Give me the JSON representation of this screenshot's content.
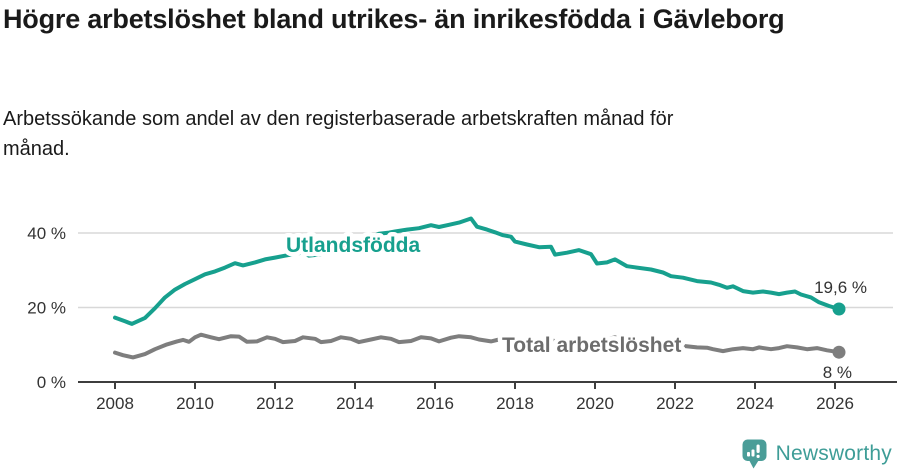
{
  "header": {
    "title": "Högre arbetslöshet bland utrikes- än inrikesfödda i Gävleborg",
    "subtitle": "Arbetssökande som andel av den registerbaserade arbetskraften månad för månad."
  },
  "footer": {
    "brand": "Newsworthy",
    "logo_icon": "newsworthy-pin-barchart-icon",
    "brand_color": "#3e9d97",
    "logo_color": "#4a9d98"
  },
  "chart_data": {
    "type": "line",
    "title": "Högre arbetslöshet bland utrikes- än inrikesfödda i Gävleborg",
    "subtitle": "Arbetssökande som andel av den registerbaserade arbetskraften månad för månad.",
    "xlabel": "",
    "ylabel": "",
    "unit": "%",
    "grid": "horizontal",
    "legend": "inline-labels",
    "xlim": [
      2007.1,
      2027.5
    ],
    "ylim": [
      0,
      47
    ],
    "x_ticks": [
      {
        "value": 2008,
        "label": "2008"
      },
      {
        "value": 2010,
        "label": "2010"
      },
      {
        "value": 2012,
        "label": "2012"
      },
      {
        "value": 2014,
        "label": "2014"
      },
      {
        "value": 2016,
        "label": "2016"
      },
      {
        "value": 2018,
        "label": "2018"
      },
      {
        "value": 2020,
        "label": "2020"
      },
      {
        "value": 2022,
        "label": "2022"
      },
      {
        "value": 2024,
        "label": "2024"
      },
      {
        "value": 2026,
        "label": "2026"
      }
    ],
    "y_ticks": [
      {
        "value": 0,
        "label": "0 %"
      },
      {
        "value": 20,
        "label": "20 %"
      },
      {
        "value": 40,
        "label": "40 %"
      }
    ],
    "series": [
      {
        "name": "Utlandsfödda",
        "color": "#17a08e",
        "label_color": "#17a08e",
        "end_label": "19,6 %",
        "end_value": 19.6,
        "points": [
          [
            2008.0,
            17.3
          ],
          [
            2008.25,
            16.3
          ],
          [
            2008.42,
            15.6
          ],
          [
            2008.75,
            17.2
          ],
          [
            2009.0,
            19.8
          ],
          [
            2009.25,
            22.7
          ],
          [
            2009.5,
            24.8
          ],
          [
            2009.75,
            26.3
          ],
          [
            2010.0,
            27.6
          ],
          [
            2010.25,
            28.9
          ],
          [
            2010.5,
            29.7
          ],
          [
            2010.75,
            30.7
          ],
          [
            2011.0,
            31.9
          ],
          [
            2011.2,
            31.3
          ],
          [
            2011.5,
            32.1
          ],
          [
            2011.75,
            32.9
          ],
          [
            2012.0,
            33.4
          ],
          [
            2012.25,
            33.9
          ],
          [
            2012.5,
            34.4
          ],
          [
            2012.7,
            34.8
          ],
          [
            2012.85,
            33.9
          ],
          [
            2013.0,
            34.1
          ],
          [
            2013.3,
            34.6
          ],
          [
            2013.6,
            35.5
          ],
          [
            2014.0,
            37.0
          ],
          [
            2014.3,
            38.3
          ],
          [
            2014.6,
            39.8
          ],
          [
            2014.85,
            40.1
          ],
          [
            2015.0,
            40.4
          ],
          [
            2015.3,
            40.9
          ],
          [
            2015.6,
            41.3
          ],
          [
            2015.9,
            42.1
          ],
          [
            2016.1,
            41.6
          ],
          [
            2016.35,
            42.2
          ],
          [
            2016.6,
            42.8
          ],
          [
            2016.9,
            43.9
          ],
          [
            2017.05,
            41.7
          ],
          [
            2017.3,
            40.9
          ],
          [
            2017.5,
            40.2
          ],
          [
            2017.7,
            39.4
          ],
          [
            2017.9,
            39.0
          ],
          [
            2018.0,
            37.7
          ],
          [
            2018.3,
            36.9
          ],
          [
            2018.6,
            36.2
          ],
          [
            2018.9,
            36.3
          ],
          [
            2019.0,
            34.2
          ],
          [
            2019.3,
            34.7
          ],
          [
            2019.6,
            35.4
          ],
          [
            2019.9,
            34.3
          ],
          [
            2020.05,
            31.8
          ],
          [
            2020.3,
            32.1
          ],
          [
            2020.5,
            32.9
          ],
          [
            2020.8,
            31.1
          ],
          [
            2021.0,
            30.8
          ],
          [
            2021.4,
            30.2
          ],
          [
            2021.7,
            29.4
          ],
          [
            2021.9,
            28.4
          ],
          [
            2022.2,
            28.0
          ],
          [
            2022.55,
            27.1
          ],
          [
            2022.9,
            26.7
          ],
          [
            2023.1,
            26.1
          ],
          [
            2023.3,
            25.3
          ],
          [
            2023.45,
            25.7
          ],
          [
            2023.7,
            24.4
          ],
          [
            2023.95,
            24.0
          ],
          [
            2024.2,
            24.3
          ],
          [
            2024.4,
            24.0
          ],
          [
            2024.6,
            23.6
          ],
          [
            2024.8,
            24.0
          ],
          [
            2025.0,
            24.3
          ],
          [
            2025.15,
            23.5
          ],
          [
            2025.4,
            22.7
          ],
          [
            2025.6,
            21.4
          ],
          [
            2025.85,
            20.4
          ],
          [
            2026.1,
            19.6
          ]
        ]
      },
      {
        "name": "Total arbetslöshet",
        "color": "#7e7e7e",
        "label_color": "#6d6d6d",
        "end_label": "8 %",
        "end_value": 8,
        "points": [
          [
            2008.0,
            7.9
          ],
          [
            2008.2,
            7.2
          ],
          [
            2008.45,
            6.6
          ],
          [
            2008.75,
            7.5
          ],
          [
            2009.0,
            8.8
          ],
          [
            2009.3,
            10.1
          ],
          [
            2009.55,
            10.9
          ],
          [
            2009.7,
            11.3
          ],
          [
            2009.85,
            10.8
          ],
          [
            2010.0,
            12.0
          ],
          [
            2010.15,
            12.7
          ],
          [
            2010.4,
            12.0
          ],
          [
            2010.6,
            11.5
          ],
          [
            2010.9,
            12.3
          ],
          [
            2011.1,
            12.2
          ],
          [
            2011.3,
            10.8
          ],
          [
            2011.55,
            10.9
          ],
          [
            2011.8,
            12.0
          ],
          [
            2012.0,
            11.6
          ],
          [
            2012.2,
            10.7
          ],
          [
            2012.5,
            11.0
          ],
          [
            2012.7,
            12.0
          ],
          [
            2013.0,
            11.6
          ],
          [
            2013.15,
            10.7
          ],
          [
            2013.4,
            11.0
          ],
          [
            2013.65,
            12.0
          ],
          [
            2013.9,
            11.6
          ],
          [
            2014.1,
            10.7
          ],
          [
            2014.4,
            11.4
          ],
          [
            2014.65,
            12.0
          ],
          [
            2014.9,
            11.6
          ],
          [
            2015.1,
            10.7
          ],
          [
            2015.4,
            11.0
          ],
          [
            2015.65,
            12.0
          ],
          [
            2015.9,
            11.7
          ],
          [
            2016.1,
            10.9
          ],
          [
            2016.4,
            11.9
          ],
          [
            2016.6,
            12.3
          ],
          [
            2016.9,
            12.0
          ],
          [
            2017.1,
            11.4
          ],
          [
            2017.4,
            10.9
          ],
          [
            2017.6,
            11.4
          ],
          [
            2017.85,
            11.7
          ],
          [
            2018.1,
            11.2
          ],
          [
            2018.4,
            10.6
          ],
          [
            2018.6,
            10.9
          ],
          [
            2018.85,
            11.3
          ],
          [
            2019.1,
            10.8
          ],
          [
            2019.4,
            10.3
          ],
          [
            2019.6,
            10.7
          ],
          [
            2019.85,
            11.1
          ],
          [
            2020.0,
            10.8
          ],
          [
            2020.3,
            11.5
          ],
          [
            2020.5,
            12.0
          ],
          [
            2020.8,
            11.4
          ],
          [
            2021.0,
            11.1
          ],
          [
            2021.3,
            10.6
          ],
          [
            2021.6,
            10.2
          ],
          [
            2021.9,
            9.9
          ],
          [
            2022.2,
            9.7
          ],
          [
            2022.55,
            9.3
          ],
          [
            2022.8,
            9.2
          ],
          [
            2022.95,
            8.8
          ],
          [
            2023.2,
            8.3
          ],
          [
            2023.45,
            8.8
          ],
          [
            2023.7,
            9.1
          ],
          [
            2023.95,
            8.8
          ],
          [
            2024.1,
            9.3
          ],
          [
            2024.4,
            8.8
          ],
          [
            2024.6,
            9.1
          ],
          [
            2024.8,
            9.6
          ],
          [
            2025.05,
            9.3
          ],
          [
            2025.3,
            8.8
          ],
          [
            2025.55,
            9.1
          ],
          [
            2025.8,
            8.5
          ],
          [
            2026.1,
            8.0
          ]
        ]
      }
    ]
  }
}
